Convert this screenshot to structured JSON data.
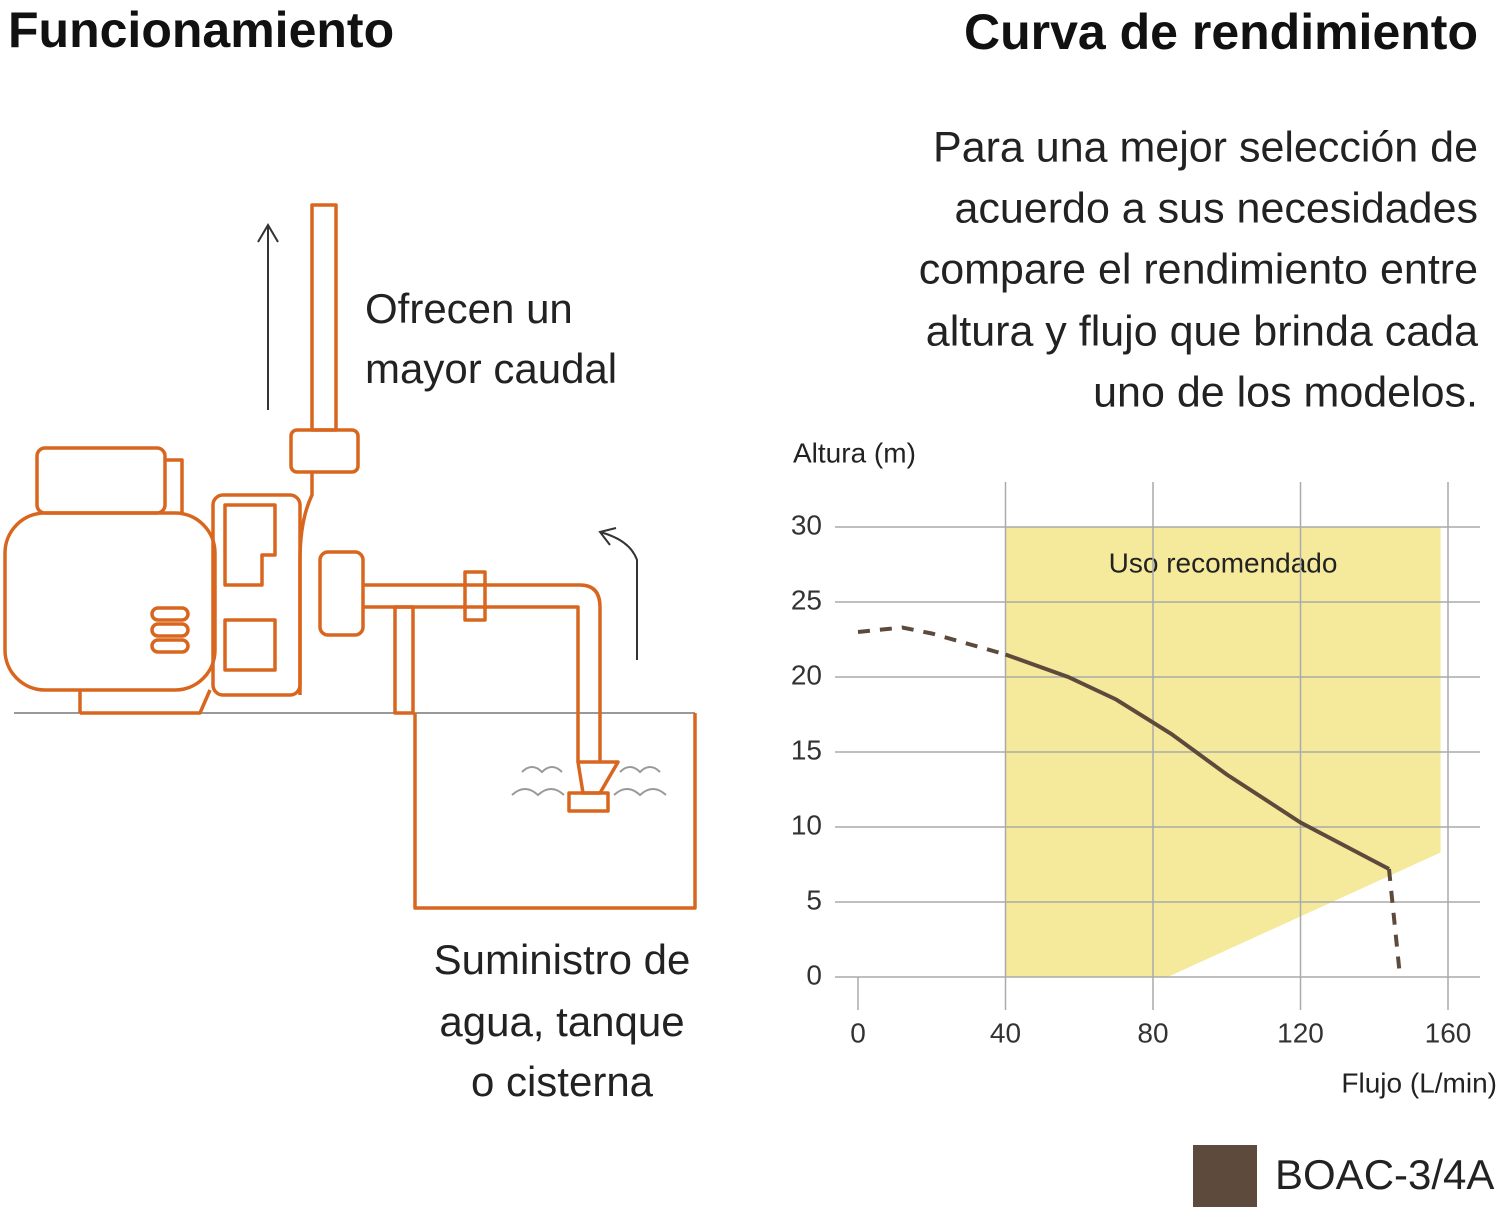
{
  "left_panel": {
    "title": "Funcionamiento",
    "callout_lines": [
      "Ofrecen un",
      "mayor caudal"
    ],
    "supply_lines": [
      "Suministro de",
      "agua, tanque",
      "o cisterna"
    ]
  },
  "right_panel": {
    "title": "Curva de rendimiento",
    "description_lines": [
      "Para una mejor selección de",
      "acuerdo a sus necesidades",
      "compare el rendimiento entre",
      "altura y flujo que brinda cada",
      "uno de los modelos."
    ]
  },
  "chart_data": {
    "type": "line",
    "y_label": "Altura (m)",
    "x_label": "Flujo (L/min)",
    "xlim": [
      0,
      160
    ],
    "ylim": [
      0,
      30
    ],
    "xticks": [
      0,
      40,
      80,
      120,
      160
    ],
    "yticks": [
      0,
      5,
      10,
      15,
      20,
      25,
      30
    ],
    "grid": true,
    "recommended_region": {
      "label": "Uso recomendado",
      "color": "#f5ea9c",
      "x": [
        40,
        158,
        158,
        84,
        40
      ],
      "y": [
        30,
        30,
        8.3,
        0,
        0
      ]
    },
    "solid_range": [
      40,
      144
    ],
    "series": [
      {
        "name": "BOAC-3/4A",
        "color": "#5e4a3d",
        "x": [
          0,
          12,
          20,
          30,
          40,
          57,
          70,
          85,
          100,
          120,
          144,
          147
        ],
        "values": [
          23,
          23.3,
          22.9,
          22.2,
          21.5,
          20,
          18.5,
          16.2,
          13.5,
          10.3,
          7.2,
          0
        ]
      }
    ]
  }
}
